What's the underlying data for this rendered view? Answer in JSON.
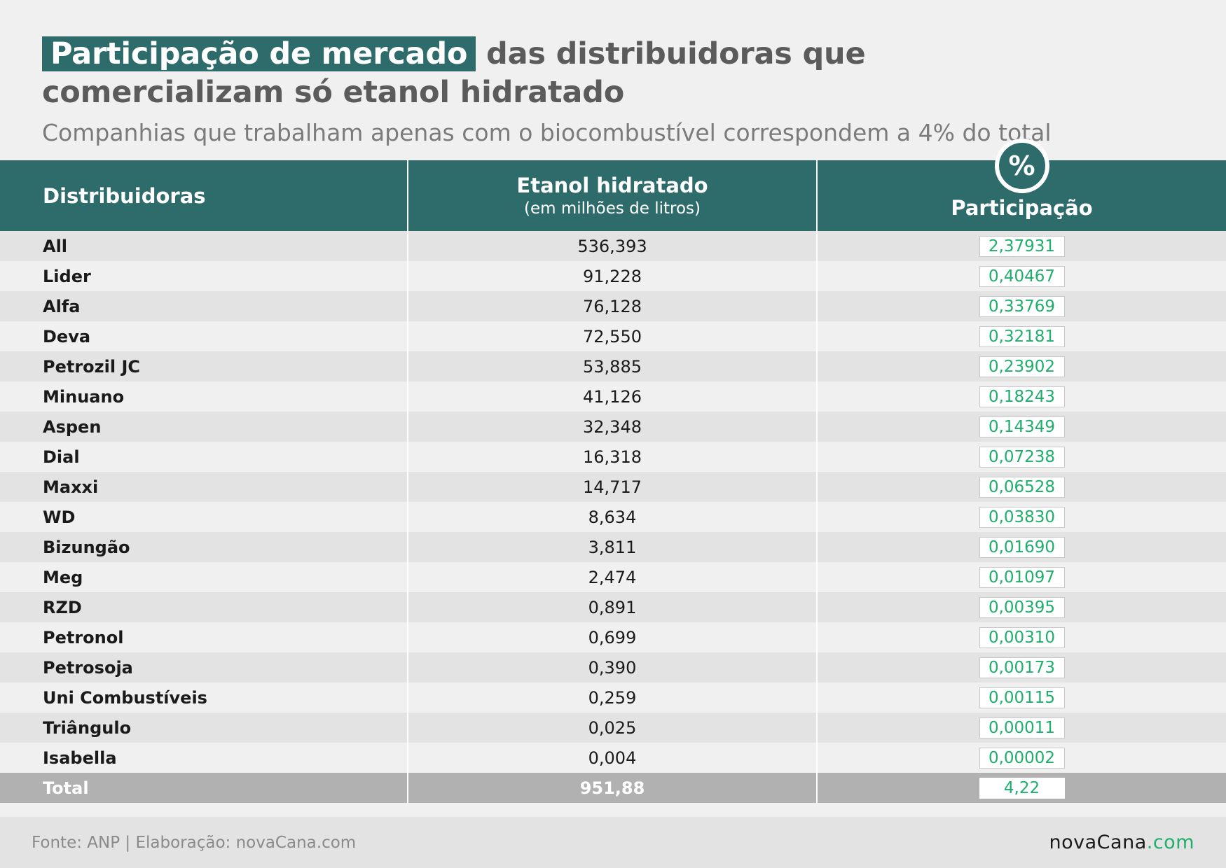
{
  "title": {
    "highlight": "Participação de mercado",
    "line1_rest": "das distribuidoras que",
    "line2": "comercializam só etanol hidratado"
  },
  "subtitle": "Companhias que trabalham apenas com o biocombustível correspondem a 4% do total",
  "table": {
    "headers": {
      "col1": "Distribuidoras",
      "col2_main": "Etanol hidratado",
      "col2_sub": "(em milhões de litros)",
      "col3": "Participação",
      "col3_icon": "%"
    },
    "rows": [
      {
        "name": "All",
        "volume": "536,393",
        "share": "2,37931"
      },
      {
        "name": "Lider",
        "volume": "91,228",
        "share": "0,40467"
      },
      {
        "name": "Alfa",
        "volume": "76,128",
        "share": "0,33769"
      },
      {
        "name": "Deva",
        "volume": "72,550",
        "share": "0,32181"
      },
      {
        "name": "Petrozil JC",
        "volume": "53,885",
        "share": "0,23902"
      },
      {
        "name": "Minuano",
        "volume": "41,126",
        "share": "0,18243"
      },
      {
        "name": "Aspen",
        "volume": "32,348",
        "share": "0,14349"
      },
      {
        "name": "Dial",
        "volume": "16,318",
        "share": "0,07238"
      },
      {
        "name": "Maxxi",
        "volume": "14,717",
        "share": "0,06528"
      },
      {
        "name": "WD",
        "volume": "8,634",
        "share": "0,03830"
      },
      {
        "name": "Bizungão",
        "volume": "3,811",
        "share": "0,01690"
      },
      {
        "name": "Meg",
        "volume": "2,474",
        "share": "0,01097"
      },
      {
        "name": "RZD",
        "volume": "0,891",
        "share": "0,00395"
      },
      {
        "name": "Petronol",
        "volume": "0,699",
        "share": "0,00310"
      },
      {
        "name": "Petrosoja",
        "volume": "0,390",
        "share": "0,00173"
      },
      {
        "name": "Uni Combustíveis",
        "volume": "0,259",
        "share": "0,00115"
      },
      {
        "name": "Triângulo",
        "volume": "0,025",
        "share": "0,00011"
      },
      {
        "name": "Isabella",
        "volume": "0,004",
        "share": "0,00002"
      }
    ],
    "total": {
      "name": "Total",
      "volume": "951,88",
      "share": "4,22"
    }
  },
  "footer": {
    "source": "Fonte: ANP | Elaboração: novaCana.com",
    "logo_main": "novaCana",
    "logo_suffix": ".com"
  },
  "colors": {
    "header_teal": "#2e6b6b",
    "share_green": "#1fae6c",
    "title_gray": "#5b5b5b"
  }
}
